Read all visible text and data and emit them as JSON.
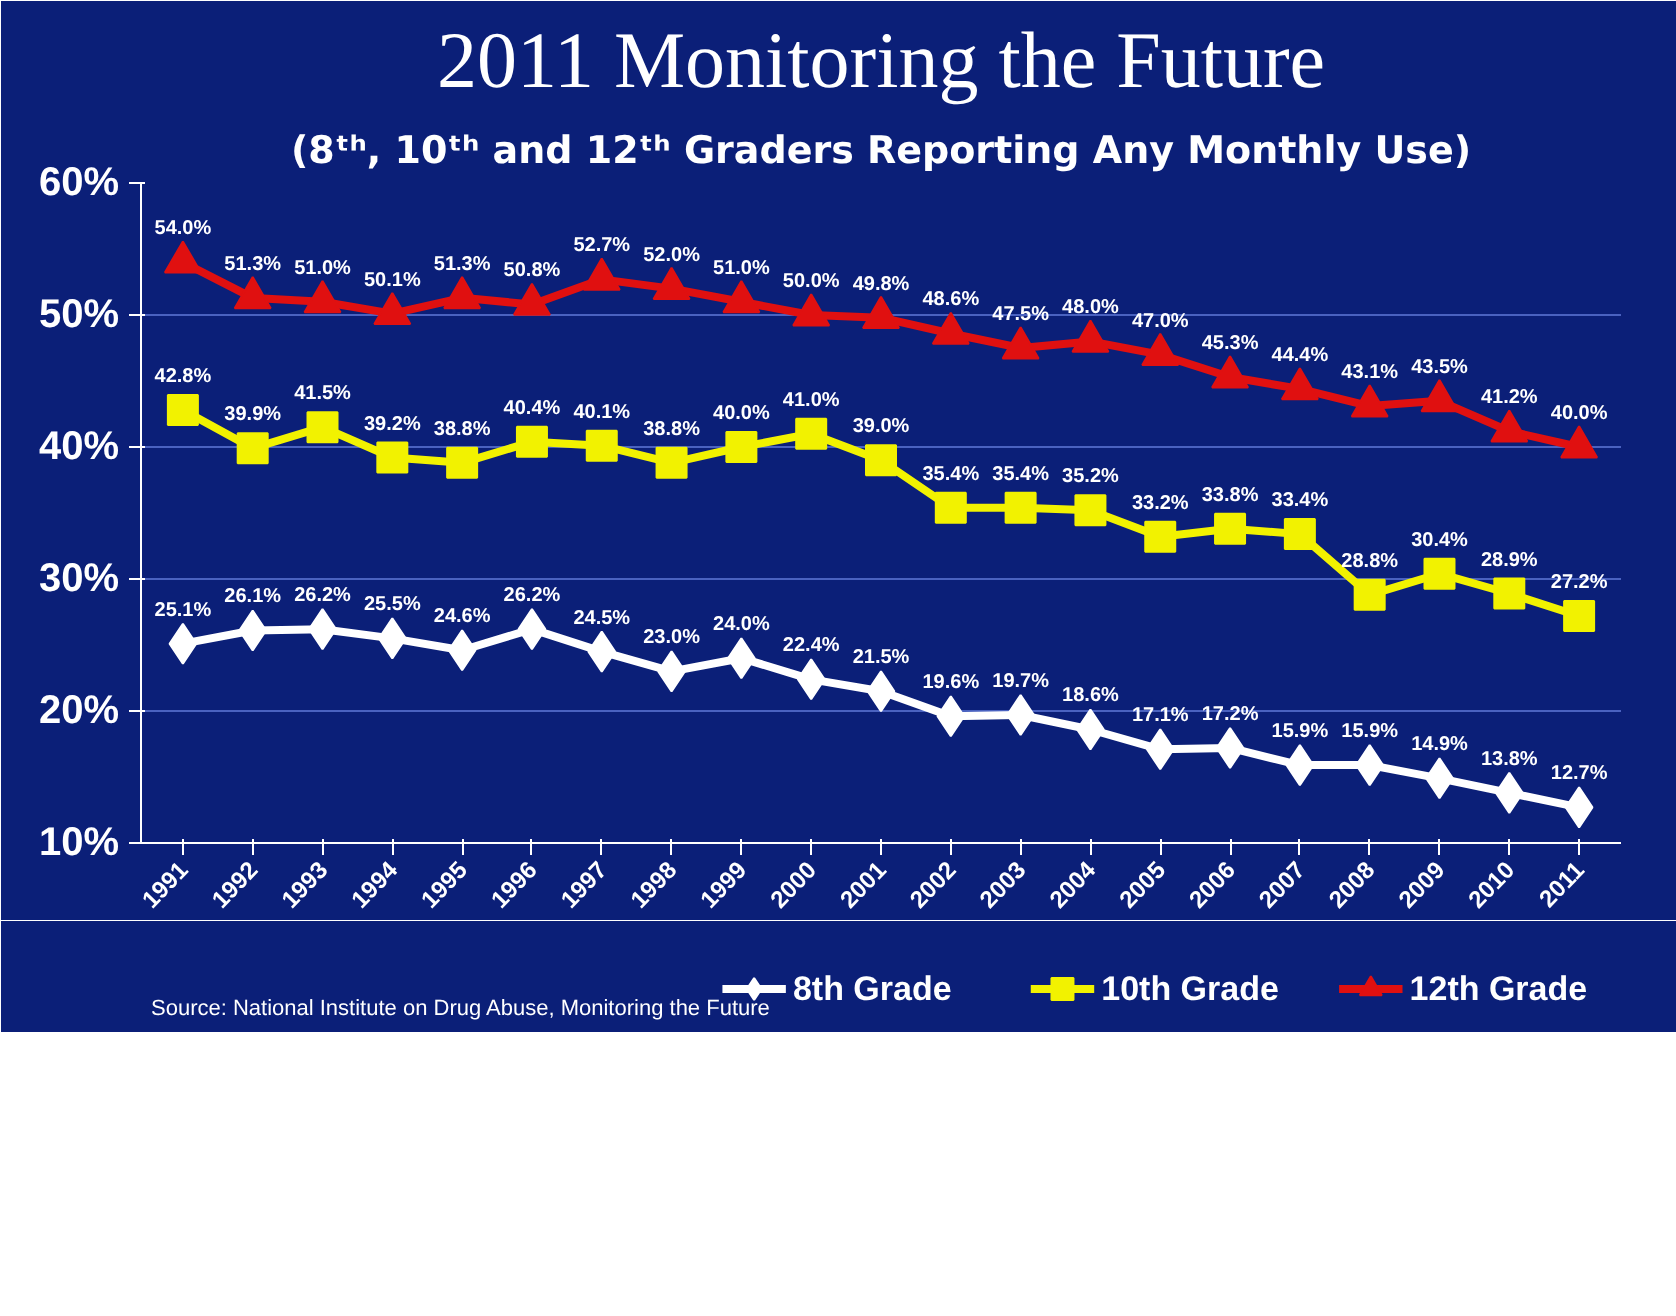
{
  "chart_data": {
    "type": "line",
    "title": "2011 Monitoring the Future",
    "subtitle": "(8ᵗʰ, 10ᵗʰ and 12ᵗʰ Graders Reporting Any Monthly Use)",
    "categories": [
      "1991",
      "1992",
      "1993",
      "1994",
      "1995",
      "1996",
      "1997",
      "1998",
      "1999",
      "2000",
      "2001",
      "2002",
      "2003",
      "2004",
      "2005",
      "2006",
      "2007",
      "2008",
      "2009",
      "2010",
      "2011"
    ],
    "series": [
      {
        "name": "8th Grade",
        "color": "#ffffff",
        "marker": "diamond",
        "values": [
          25.1,
          26.1,
          26.2,
          25.5,
          24.6,
          26.2,
          24.5,
          23.0,
          24.0,
          22.4,
          21.5,
          19.6,
          19.7,
          18.6,
          17.1,
          17.2,
          15.9,
          15.9,
          14.9,
          13.8,
          12.7
        ],
        "value_labels": [
          "25.1%",
          "26.1%",
          "26.2%",
          "25.5%",
          "24.6%",
          "26.2%",
          "24.5%",
          "23.0%",
          "24.0%",
          "22.4%",
          "21.5%",
          "19.6%",
          "19.7%",
          "18.6%",
          "17.1%",
          "17.2%",
          "15.9%",
          "15.9%",
          "14.9%",
          "13.8%",
          "12.7%"
        ]
      },
      {
        "name": "10th Grade",
        "color": "#f2f200",
        "marker": "square",
        "values": [
          42.8,
          39.9,
          41.5,
          39.2,
          38.8,
          40.4,
          40.1,
          38.8,
          40.0,
          41.0,
          39.0,
          35.4,
          35.4,
          35.2,
          33.2,
          33.8,
          33.4,
          28.8,
          30.4,
          28.9,
          27.2
        ],
        "value_labels": [
          "42.8%",
          "39.9%",
          "41.5%",
          "39.2%",
          "38.8%",
          "40.4%",
          "40.1%",
          "38.8%",
          "40.0%",
          "41.0%",
          "39.0%",
          "35.4%",
          "35.4%",
          "35.2%",
          "33.2%",
          "33.8%",
          "33.4%",
          "28.8%",
          "30.4%",
          "28.9%",
          "27.2%"
        ]
      },
      {
        "name": "12th Grade",
        "color": "#e01010",
        "marker": "triangle",
        "values": [
          54.0,
          51.3,
          51.0,
          50.1,
          51.3,
          50.8,
          52.7,
          52.0,
          51.0,
          50.0,
          49.8,
          48.6,
          47.5,
          48.0,
          47.0,
          45.3,
          44.4,
          43.1,
          43.5,
          41.2,
          40.0
        ],
        "value_labels": [
          "54.0%",
          "51.3%",
          "51.0%",
          "50.1%",
          "51.3%",
          "50.8%",
          "52.7%",
          "52.0%",
          "51.0%",
          "50.0%",
          "49.8%",
          "48.6%",
          "47.5%",
          "48.0%",
          "47.0%",
          "45.3%",
          "44.4%",
          "43.1%",
          "43.5%",
          "41.2%",
          "40.0%"
        ]
      }
    ],
    "ylim": [
      10,
      60
    ],
    "yticks": [
      {
        "value": 10,
        "label": "10%"
      },
      {
        "value": 20,
        "label": "20%"
      },
      {
        "value": 30,
        "label": "30%"
      },
      {
        "value": 40,
        "label": "40%"
      },
      {
        "value": 50,
        "label": "50%"
      },
      {
        "value": 60,
        "label": "60%"
      }
    ],
    "grid": "y",
    "legend": "bottom",
    "line_style": "solid",
    "annotations": [
      "Source: National Institute on Drug Abuse, Monitoring the Future"
    ]
  }
}
